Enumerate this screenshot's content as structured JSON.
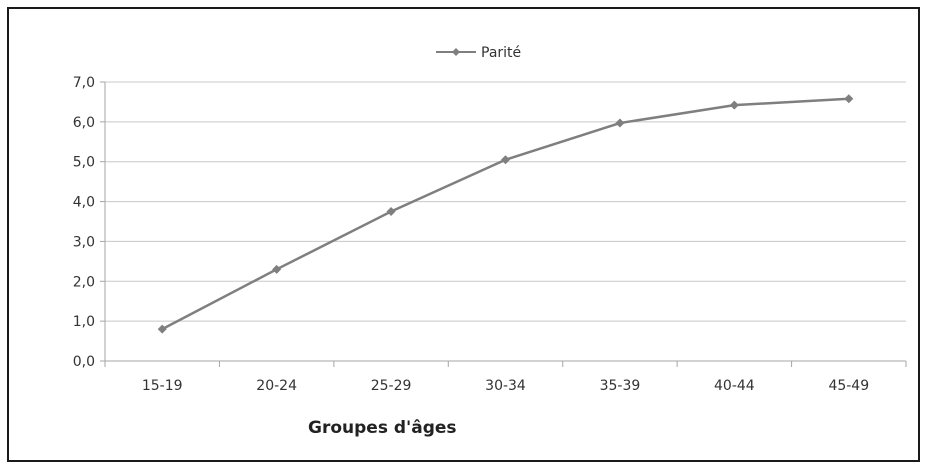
{
  "chart_data": {
    "type": "line",
    "title": "",
    "xlabel": "Groupes d'âges",
    "ylabel": "",
    "categories": [
      "15-19",
      "20-24",
      "25-29",
      "30-34",
      "35-39",
      "40-44",
      "45-49"
    ],
    "series": [
      {
        "name": "Parité",
        "values": [
          0.8,
          2.3,
          3.75,
          5.05,
          5.97,
          6.42,
          6.58
        ]
      }
    ],
    "ylim": [
      0,
      7
    ],
    "yticks": [
      "0,0",
      "1,0",
      "2,0",
      "3,0",
      "4,0",
      "5,0",
      "6,0",
      "7,0"
    ],
    "grid": true,
    "legend_position": "top-center",
    "colors": {
      "line": "#7f7f7f",
      "grid": "#c8c8c8",
      "axis": "#a6a6a6",
      "frame": "#1a1a1a"
    }
  }
}
